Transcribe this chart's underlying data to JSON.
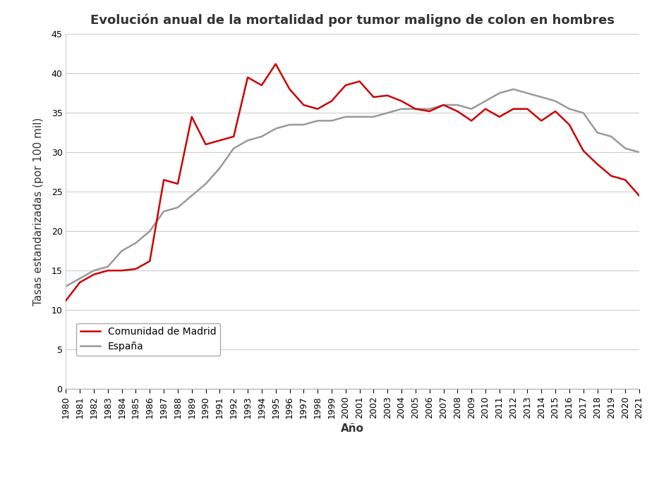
{
  "title": "Evolución anual de la mortalidad por tumor maligno de colon en hombres",
  "xlabel": "Año",
  "ylabel": "Tasas estandarizadas (por 100 mil)",
  "ylim": [
    0,
    45
  ],
  "yticks": [
    0,
    5,
    10,
    15,
    20,
    25,
    30,
    35,
    40,
    45
  ],
  "years": [
    1980,
    1981,
    1982,
    1983,
    1984,
    1985,
    1986,
    1987,
    1988,
    1989,
    1990,
    1991,
    1992,
    1993,
    1994,
    1995,
    1996,
    1997,
    1998,
    1999,
    2000,
    2001,
    2002,
    2003,
    2004,
    2005,
    2006,
    2007,
    2008,
    2009,
    2010,
    2011,
    2012,
    2013,
    2014,
    2015,
    2016,
    2017,
    2018,
    2019,
    2020,
    2021
  ],
  "madrid": [
    11.2,
    13.5,
    14.5,
    15.0,
    15.0,
    15.2,
    16.2,
    26.5,
    26.0,
    34.5,
    31.0,
    31.5,
    32.0,
    39.5,
    38.5,
    41.2,
    38.0,
    36.0,
    35.5,
    36.5,
    38.5,
    39.0,
    37.0,
    37.2,
    36.5,
    35.5,
    35.2,
    36.0,
    35.2,
    34.0,
    35.5,
    34.5,
    35.5,
    35.5,
    34.0,
    35.2,
    33.5,
    30.2,
    28.5,
    27.0,
    26.5,
    24.5
  ],
  "espana": [
    13.0,
    14.0,
    15.0,
    15.5,
    17.5,
    18.5,
    20.0,
    22.5,
    23.0,
    24.5,
    26.0,
    28.0,
    30.5,
    31.5,
    32.0,
    33.0,
    33.5,
    33.5,
    34.0,
    34.0,
    34.5,
    34.5,
    34.5,
    35.0,
    35.5,
    35.5,
    35.5,
    36.0,
    36.0,
    35.5,
    36.5,
    37.5,
    38.0,
    37.5,
    37.0,
    36.5,
    35.5,
    35.0,
    32.5,
    32.0,
    30.5,
    30.0
  ],
  "madrid_color": "#cc0000",
  "espana_color": "#999999",
  "madrid_label": "Comunidad de Madrid",
  "espana_label": "España",
  "line_width": 1.8,
  "background_color": "#ffffff",
  "grid_color": "#cccccc",
  "title_fontsize": 13,
  "axis_label_fontsize": 11,
  "tick_fontsize": 9,
  "legend_fontsize": 10
}
